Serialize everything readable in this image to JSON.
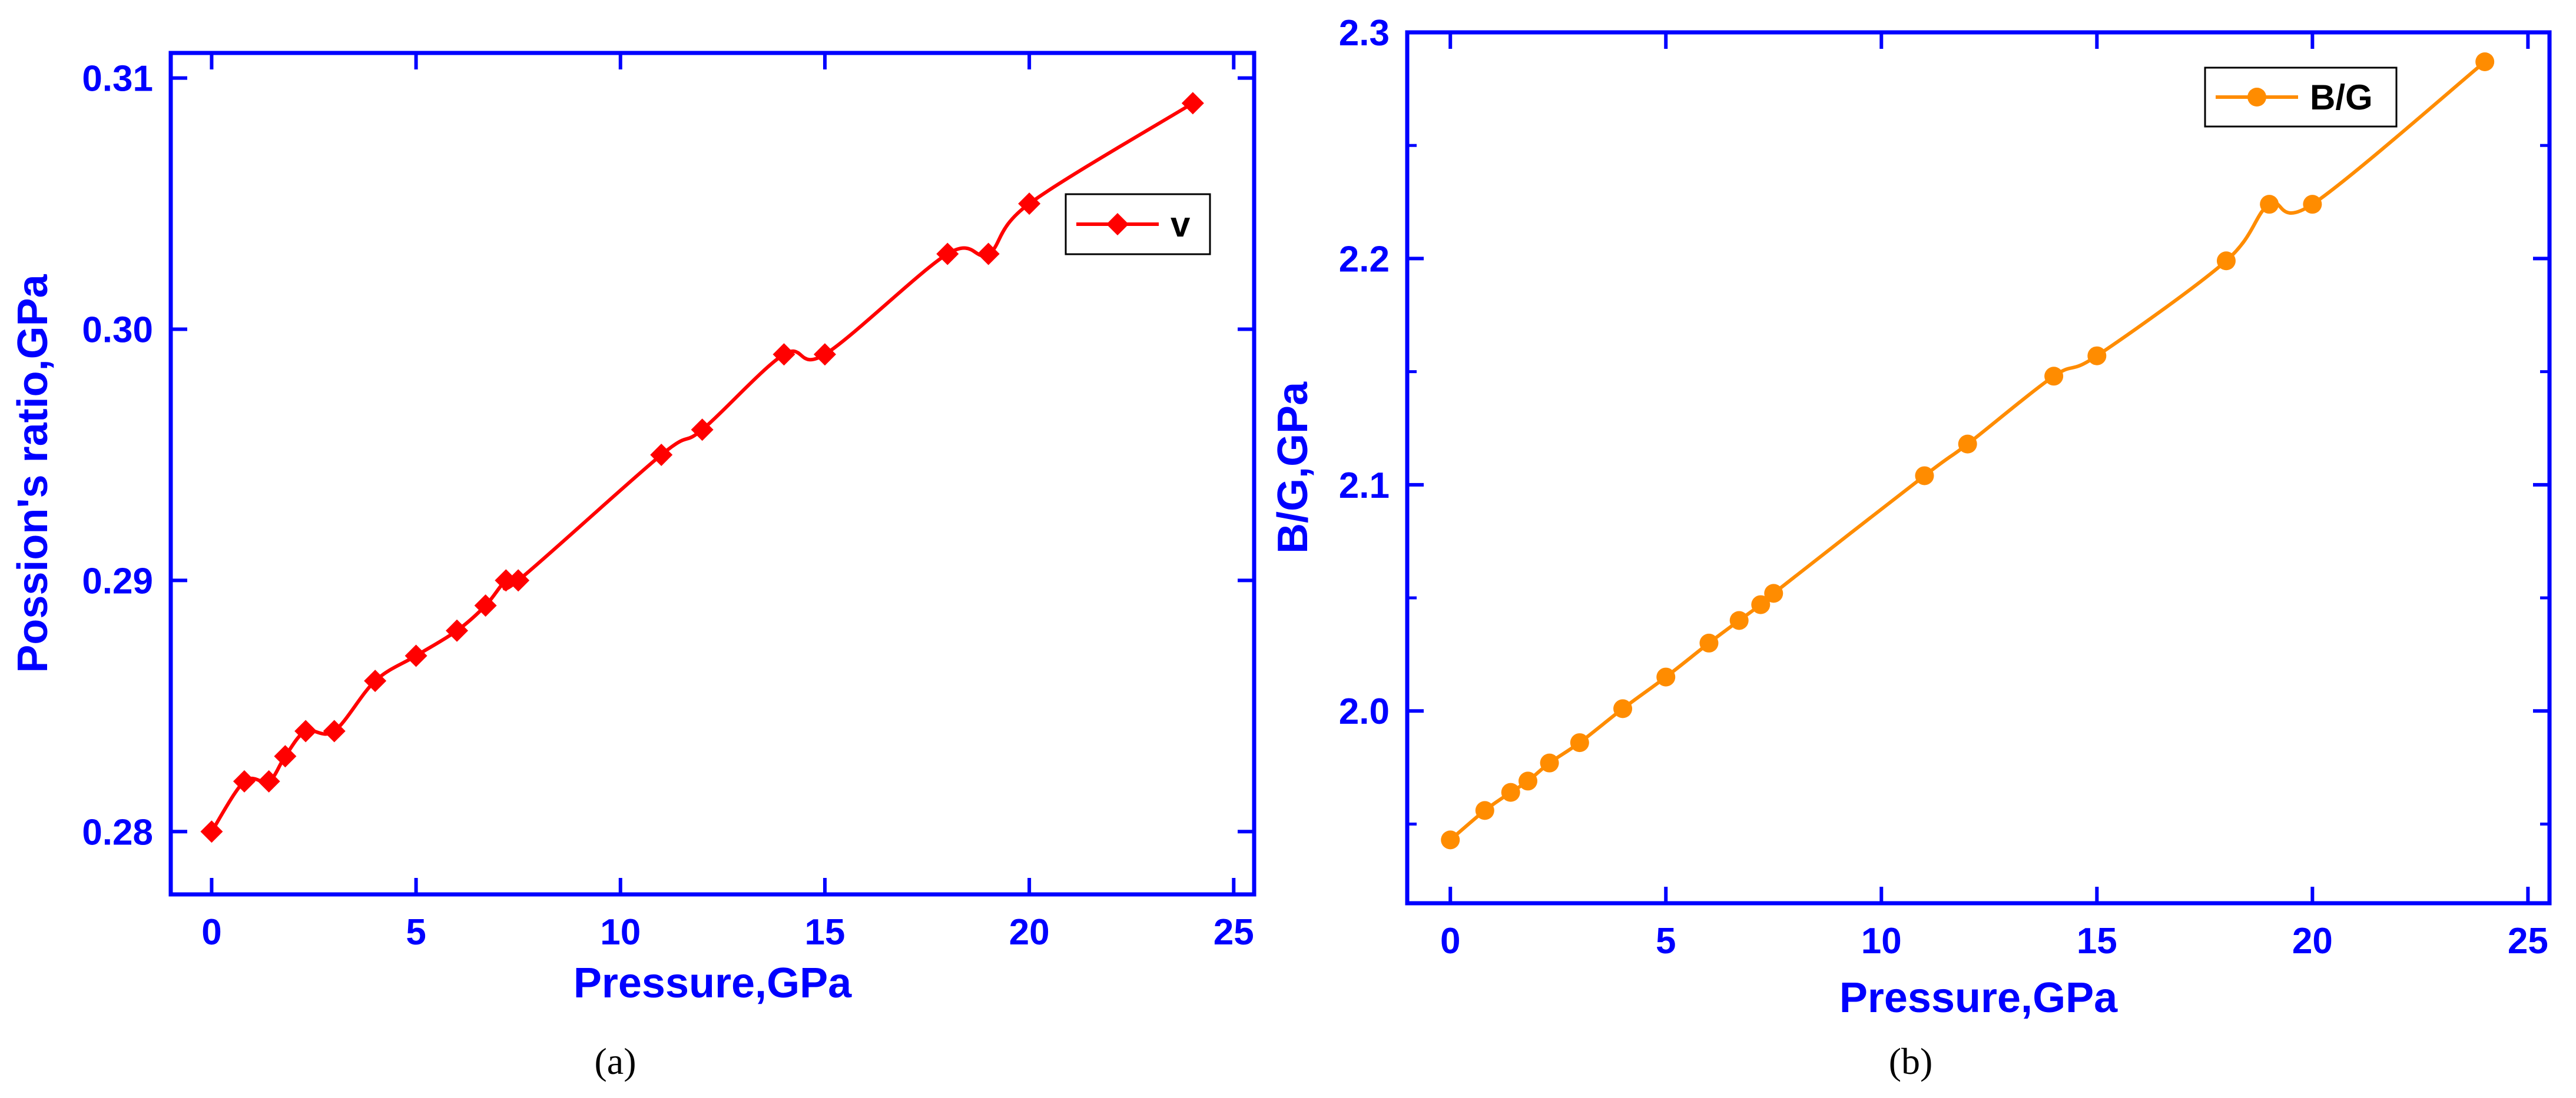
{
  "figure": {
    "captions": [
      "(a)",
      "(b)"
    ]
  },
  "chart_data": [
    {
      "type": "line",
      "panel": "a",
      "xlabel": "Pressure,GPa",
      "ylabel": "Possion's ratio,GPa",
      "xlim": [
        -1,
        25.5
      ],
      "ylim": [
        0.2775,
        0.311
      ],
      "xticks": [
        0,
        5,
        10,
        15,
        20,
        25
      ],
      "xtick_labels": [
        "0",
        "5",
        "10",
        "15",
        "20",
        "25"
      ],
      "yticks": [
        0.28,
        0.29,
        0.3,
        0.31
      ],
      "ytick_labels": [
        "0.28",
        "0.29",
        "0.30",
        "0.31"
      ],
      "grid": false,
      "legend_position": "top-right",
      "marker": "diamond",
      "colors": {
        "axis": "#0000ff",
        "series": "#ff0000"
      },
      "series": [
        {
          "name": "v",
          "x": [
            0,
            0.8,
            1.4,
            1.8,
            2.3,
            3,
            4,
            5,
            6,
            6.7,
            7.2,
            7.5,
            11,
            12,
            14,
            15,
            18,
            19,
            20,
            24
          ],
          "values": [
            0.28,
            0.282,
            0.282,
            0.283,
            0.284,
            0.284,
            0.286,
            0.287,
            0.288,
            0.289,
            0.29,
            0.29,
            0.295,
            0.296,
            0.299,
            0.299,
            0.303,
            0.303,
            0.305,
            0.309
          ]
        }
      ]
    },
    {
      "type": "line",
      "panel": "b",
      "xlabel": "Pressure,GPa",
      "ylabel": "B/G,GPa",
      "xlim": [
        -1,
        25.5
      ],
      "ylim": [
        1.915,
        2.3
      ],
      "xticks": [
        0,
        5,
        10,
        15,
        20,
        25
      ],
      "xtick_labels": [
        "0",
        "5",
        "10",
        "15",
        "20",
        "25"
      ],
      "yticks": [
        2.0,
        2.1,
        2.2,
        2.3
      ],
      "ytick_labels": [
        "2.0",
        "2.1",
        "2.2",
        "2.3"
      ],
      "minor_yticks": [
        1.95,
        2.05,
        2.15,
        2.25
      ],
      "grid": false,
      "legend_position": "top-right",
      "marker": "circle",
      "colors": {
        "axis": "#0000ff",
        "series": "#ff8c00"
      },
      "series": [
        {
          "name": "B/G",
          "x": [
            0,
            0.8,
            1.4,
            1.8,
            2.3,
            3,
            4,
            5,
            6,
            6.7,
            7.2,
            7.5,
            11,
            12,
            14,
            15,
            18,
            19,
            20,
            24
          ],
          "values": [
            1.943,
            1.956,
            1.964,
            1.969,
            1.977,
            1.986,
            2.001,
            2.015,
            2.03,
            2.04,
            2.047,
            2.052,
            2.104,
            2.118,
            2.148,
            2.157,
            2.199,
            2.224,
            2.224,
            2.287
          ]
        }
      ]
    }
  ]
}
